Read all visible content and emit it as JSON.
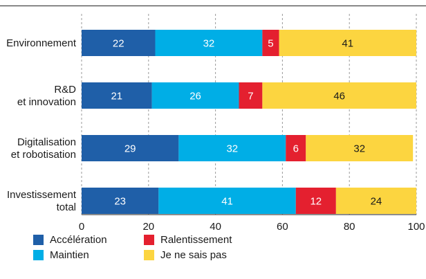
{
  "chart_data": {
    "type": "bar",
    "orientation": "horizontal",
    "stacked": true,
    "title": "",
    "xlabel": "",
    "ylabel": "",
    "xlim": [
      0,
      100
    ],
    "x_ticks": [
      "0",
      "20",
      "40",
      "60",
      "80",
      "100"
    ],
    "grid": "vertical dashed",
    "legend_position": "bottom-left",
    "categories": [
      [
        "Environnement"
      ],
      [
        "R&D",
        "et innovation"
      ],
      [
        "Digitalisation",
        "et robotisation"
      ],
      [
        "Investissement",
        "total"
      ]
    ],
    "series": [
      {
        "name": "Accélération",
        "color": "#1f5fa8",
        "values": [
          22,
          21,
          29,
          23
        ]
      },
      {
        "name": "Maintien",
        "color": "#00aee6",
        "values": [
          32,
          26,
          32,
          41
        ]
      },
      {
        "name": "Ralentissement",
        "color": "#e4202f",
        "values": [
          5,
          7,
          6,
          12
        ]
      },
      {
        "name": "Je ne sais pas",
        "color": "#fcd540",
        "values": [
          41,
          46,
          32,
          24
        ]
      }
    ],
    "label_colors": [
      "#ffffff",
      "#ffffff",
      "#ffffff",
      "#1a1a1a"
    ]
  },
  "legend": [
    {
      "label": "Accélération",
      "color": "#1f5fa8"
    },
    {
      "label": "Ralentissement",
      "color": "#e4202f"
    },
    {
      "label": "Maintien",
      "color": "#00aee6"
    },
    {
      "label": "Je ne sais pas",
      "color": "#fcd540"
    }
  ]
}
